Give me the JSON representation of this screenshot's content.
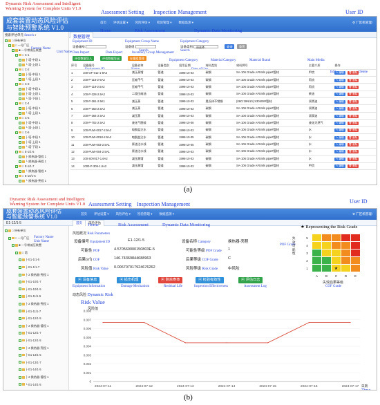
{
  "a": {
    "caption": "(a)",
    "ann_title": "Dynamic Risk Assessment and Intelligent Warning System for Complete Units V1.0",
    "app_title_1": "成套装置动态风险评估",
    "app_title_2": "与智能预警系统 V1.0",
    "menu": [
      "首页",
      "评估设置 ▾",
      "风险评估 ▾",
      "检验管理 ▾",
      "数据监测 ▾"
    ],
    "user": "⚙ 厂区机管理/",
    "ann_assess": "Assessment Setting",
    "ann_insp": "Inspection Management",
    "ann_user": "User ID",
    "tab": "数据管理",
    "ann_home": "Home",
    "ann_risk": "Risk Assessment",
    "ann_dyn": "Dynamic Data Monitoring",
    "search_label": "搜索评估单元",
    "ann_search": "Search",
    "ann_factory": "Factory Name",
    "ann_unit": "Unit Name",
    "f_equipid": "设备编号:",
    "ann_equipid": "Equipment ID",
    "f_group": "设备组:",
    "ann_group": "Equipment Group Name",
    "f_cat": "设备类别:",
    "f_cat_sel": "--请选择--",
    "ann_cat": "Equipment Category",
    "btn_search": "查询",
    "btn_reset": "重置",
    "ann_import": "Data Import",
    "ann_export": "Data Export",
    "ann_invgroup": "Inventory Group Management",
    "btn_import": "评估数据导入",
    "btn_export": "评估数据导出",
    "btn_inv": "存量组管理",
    "ann_ecat": "Equipment Category",
    "ann_mcat": "Material Category",
    "ann_mbrand": "Material Brand",
    "ann_media": "Main Media",
    "ann_equipid2": "Equipment ID",
    "ann_name": "Name",
    "ann_date": "Date of Use",
    "ann_edit": "Edit",
    "ann_del": "Delete",
    "cols": [
      "序号",
      "设备编号",
      "设备名称",
      "设备类别",
      "投用日期",
      "材料类别",
      "材料牌号",
      "主要介质",
      "操作"
    ],
    "edit": "编辑",
    "del": "删除",
    "rows": [
      [
        "1",
        "100-GF-012-1-8A2",
        "减压蒸馏",
        "管道",
        "1998-10-03",
        "碳钢",
        "SA-106 Grade A#Smls pipe#管材",
        "甲烷"
      ],
      [
        "2",
        "100-P-116-2-5A2",
        "压缩干气",
        "管道",
        "1998-10-03",
        "碳钢",
        "SA-106 Grade A#Smls pipe#管材",
        "丙烷"
      ],
      [
        "3",
        "100-P-119-2.5A2",
        "压缩干气",
        "管道",
        "1998-10-03",
        "碳钢",
        "SA-106 Grade A#Smls pipe#管材",
        "丙烷"
      ],
      [
        "4",
        "100-P-328-2.5A2",
        "二段压缩油",
        "管道",
        "1998-10-03",
        "碳钢",
        "SA-106 Grade A#Smls pipe#管材",
        "柴油"
      ],
      [
        "5",
        "100-P-361-2.5K1",
        "减压蒸",
        "管道",
        "1998-10-03",
        "奥氏体不锈钢",
        "(06Cr19Ni10) S30408#管材",
        "润滑油"
      ],
      [
        "6",
        "100-P-363-2.5A2",
        "减压蒸",
        "管道",
        "1998-10-03",
        "碳钢",
        "SA-106 Grade A#Smls pipe#管材",
        "润滑油"
      ],
      [
        "7",
        "100-P-364-2.5A2",
        "减压蒸",
        "管道",
        "1998-10-03",
        "碳钢",
        "SA-106 Grade A#Smls pipe#管材",
        "润滑油"
      ],
      [
        "8",
        "100-P-702-2.5A2",
        "液化气脱硫",
        "管道",
        "1998-10-06",
        "碳钢",
        "SA-106 Grade A#Smls pipe#管材",
        "液化天然气"
      ],
      [
        "9",
        "100-PUW-0017-2.5A2",
        "电脱盐注水",
        "管道",
        "1998-10-03",
        "碳钢",
        "SA-106 Grade A#Smls pipe#管材",
        "水"
      ],
      [
        "10",
        "100-PUW-0018-2.5A2",
        "电脱盐注水",
        "管道",
        "1998-10-05",
        "碳钢",
        "SA-106 Grade A#Smls pipe#管材",
        "水"
      ],
      [
        "11",
        "100-PUW-003-2.5A1",
        "原油注水线",
        "管道",
        "1998-10-05",
        "碳钢",
        "SA-106 Grade A#Smls pipe#管材",
        "水"
      ],
      [
        "12",
        "100-PUW-004-2.5A1",
        "原油注水线",
        "管道",
        "1998-10-03",
        "碳钢",
        "SA-106 Grade A#Smls pipe#管材",
        "水"
      ],
      [
        "13",
        "100-S0V017-1.6A2",
        "减压蒸馏",
        "管道",
        "1998-10-03",
        "碳钢",
        "SA-106 Grade A#Smls pipe#管材",
        "水"
      ],
      [
        "14",
        "1000-P-305-1.6A2",
        "减压蒸馏",
        "管道",
        "1998-10-03",
        "碳钢",
        "SA-106 Grade A#Smls pipe#管材",
        "甲烷"
      ]
    ],
    "tree": [
      [
        "0",
        "□ 所有单位"
      ],
      [
        "1",
        "□ 一号厂区"
      ],
      [
        "2",
        "■ 一号常减压装置"
      ],
      [
        "3",
        "□ C-1"
      ],
      [
        "4",
        "├ 塔-中段 1"
      ],
      [
        "4",
        "└ 塔-上段 1"
      ],
      [
        "3",
        "□ C-2"
      ],
      [
        "4",
        "├ 塔-中段 1"
      ],
      [
        "4",
        "└ 塔-上段 1"
      ],
      [
        "3",
        "□ C-3"
      ],
      [
        "4",
        "├ 塔-中段 1"
      ],
      [
        "4",
        "├ 塔-上段 1"
      ],
      [
        "4",
        "└ 塔-下段 1"
      ],
      [
        "3",
        "□ C-4"
      ],
      [
        "4",
        "├ 塔-中段 1"
      ],
      [
        "4",
        "└ 塔-上段 1"
      ],
      [
        "3",
        "□ C-5"
      ],
      [
        "4",
        "├ 塔-中段 1"
      ],
      [
        "4",
        "└ 塔-上段 1"
      ],
      [
        "3",
        "□ C-6"
      ],
      [
        "4",
        "├ 塔-中段 1"
      ],
      [
        "4",
        "├ 塔-上段 1"
      ],
      [
        "4",
        "└ 塔-下段 1"
      ],
      [
        "3",
        "□ E-1/1-5"
      ],
      [
        "4",
        "├ 换热器-管程 1"
      ],
      [
        "4",
        "└ 换热器-壳程 1"
      ],
      [
        "3",
        "□ E-1/1-7"
      ],
      [
        "4",
        "└ 换热器-管程 1"
      ],
      [
        "3",
        "□ E-10/1-5"
      ],
      [
        "4",
        "└ 换热器-壳程 1"
      ]
    ]
  },
  "b": {
    "caption": "(b)",
    "ann_title": "Dynamic Risk Assessment and Intelligent Warning System for Complete Units V1.0",
    "app_title_1": "成套装置动态风险评估",
    "app_title_2": "与智能预警系统 V1.0",
    "menu": [
      "首页",
      "评估设置 ▾",
      "风险评估 ▾",
      "检验管理 ▾",
      "数据监测 ▾"
    ],
    "user": "⚙ 厂区机管理/",
    "ann_assess": "Assessment Setting",
    "ann_insp": "Inspection Management",
    "ann_user": "User ID",
    "unit": "E1-12/1-5",
    "tab_home": "首页",
    "tab_risk": "风险评估",
    "ann_home": "Home",
    "ann_risk": "Risk Assessment",
    "ann_dyn": "Dynamic Data Monitoring",
    "ann_factory": "Factory Name",
    "ann_unitname": "Unit Name",
    "section_risk": "风险概况",
    "ann_riskparams": "Risk Parameters",
    "k_equipid": "设备编号",
    "ann_k_equipid": "Equipment ID",
    "v_equipid": "E1-12/1-5",
    "k_type": "设备名称",
    "ann_k_type": "Category",
    "v_type": "换热器-壳程",
    "k_pof": "可能性",
    "ann_pof": "POF",
    "v_pof": "4.570560000150803E-5",
    "k_pofg": "可能性等级",
    "ann_pofg": "POF Grade",
    "v_pofg": "1",
    "k_cof": "后果(㎡)",
    "ann_cof": "COF",
    "v_cof": "146.74369844688963",
    "k_cofg": "后果等级",
    "ann_cofg": "COF Grade",
    "v_cofg": "C",
    "k_rv": "风险值",
    "ann_rv": "Risk Value",
    "v_rv": "0.006707017924676262",
    "k_rg": "风险等级",
    "ann_rg": "Risk Grade",
    "v_rg": "中风险",
    "ann_rgrade": "★ Representing the Risk Grade",
    "ann_pofgrade": "POF Grade",
    "ann_cofgrade": "COF Grade",
    "mtx_title": "失效可能性",
    "mtx_xlabel": "失效后果等级",
    "mtx_rows": [
      "5",
      "4",
      "3",
      "2",
      "1"
    ],
    "mtx_cols": [
      "A",
      "B",
      "C",
      "D",
      "E"
    ],
    "mtx_star": "★",
    "colors": {
      "green": "#3cb24a",
      "yellow": "#f5d21e",
      "orange": "#f28c1e",
      "red": "#e02b1e"
    },
    "btns": [
      "设备信息",
      "损伤机理",
      "剩余寿命",
      "检验有效性",
      "评估日志"
    ],
    "ann_btns": [
      "Equipment Information",
      "Damage Mechanism",
      "Residual Life",
      "Inspection Effectiveness",
      "Assessment Log"
    ],
    "section_dyn": "动态风险",
    "ann_dynrisk": "Dynamic Risk",
    "chart_data": {
      "type": "line",
      "title": "Risk Value",
      "ylabel": "风险值",
      "xlabel": "日期",
      "ann_xlabel": "Time",
      "x": [
        "2024-07-11",
        "2024-07-12",
        "2024-07-13",
        "2024-07-14",
        "2024-07-15",
        "2024-07-16",
        "2024-07-17"
      ],
      "values": [
        0.0067,
        0.0067,
        0.0044,
        0.0044,
        0.0044,
        0.0067,
        0.0067
      ],
      "ylim": [
        0,
        0.008
      ],
      "yticks": [
        "0.008",
        "0.007",
        "0.006",
        "0.005",
        "0.004",
        "0.003",
        "0.002",
        "0.001",
        "0"
      ],
      "color": "#d94a3a"
    },
    "tree": [
      [
        "0",
        "□ 所有单位"
      ],
      [
        "1",
        "□ 一号厂区"
      ],
      [
        "2",
        "■ 一号常减压装置"
      ],
      [
        "3",
        "□ 塔"
      ],
      [
        "4",
        "├ E1-1/1-5"
      ],
      [
        "4",
        "├ E1-1/1-7"
      ],
      [
        "4",
        "├ 2 换热器-壳程 1"
      ],
      [
        "4",
        "├ E1-10/1-7"
      ],
      [
        "4",
        "├ E1-10/1-5"
      ],
      [
        "4",
        "├ E1-11/1-5"
      ],
      [
        "4",
        "├ 2 换热器-壳程 1"
      ],
      [
        "4",
        "├ E1-11/1-7"
      ],
      [
        "4",
        "├ E1-12/1-5"
      ],
      [
        "4",
        "├ 2 换热器-管程 1"
      ],
      [
        "4",
        "├ E1-12/1-7"
      ],
      [
        "4",
        "├ E1-12/1-5"
      ],
      [
        "4",
        "├ 2 换热器-壳程 1"
      ],
      [
        "4",
        "├ E1-13/1-5"
      ],
      [
        "4",
        "├ E1-13/1-7"
      ],
      [
        "4",
        "├ E1-14/1-5"
      ],
      [
        "4",
        "├ 2 换热器-管程 1"
      ],
      [
        "4",
        "└ E1-14/1-5"
      ]
    ]
  }
}
